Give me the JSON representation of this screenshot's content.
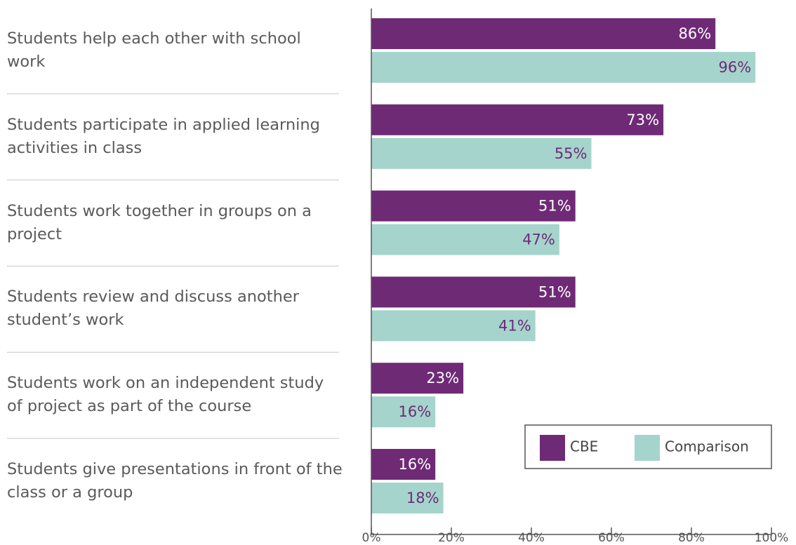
{
  "chart_data": {
    "type": "hbar",
    "categories": [
      "Students help each other with school work",
      "Students participate in applied learning activities in class",
      "Students work together in groups on a project",
      "Students review and discuss another student’s work",
      "Students work on an independent study of project as part of the course",
      "Students give presentations in front of the class or a group"
    ],
    "series": [
      {
        "name": "CBE",
        "color": "#6f2a76",
        "values": [
          86,
          73,
          51,
          51,
          23,
          16
        ],
        "value_labels": [
          "86%",
          "73%",
          "51%",
          "51%",
          "23%",
          "16%"
        ]
      },
      {
        "name": "Comparison",
        "color": "#a5d4cc",
        "values": [
          96,
          55,
          47,
          41,
          16,
          18
        ],
        "value_labels": [
          "96%",
          "55%",
          "47%",
          "41%",
          "16%",
          "18%"
        ]
      }
    ],
    "xlim": [
      0,
      100
    ],
    "xticks": [
      {
        "value": 0,
        "label": "0%"
      },
      {
        "value": 20,
        "label": "20%"
      },
      {
        "value": 40,
        "label": "40%"
      },
      {
        "value": 60,
        "label": "60%"
      },
      {
        "value": 80,
        "label": "80%"
      },
      {
        "value": 100,
        "label": "100%"
      }
    ],
    "legend": "lower right"
  }
}
